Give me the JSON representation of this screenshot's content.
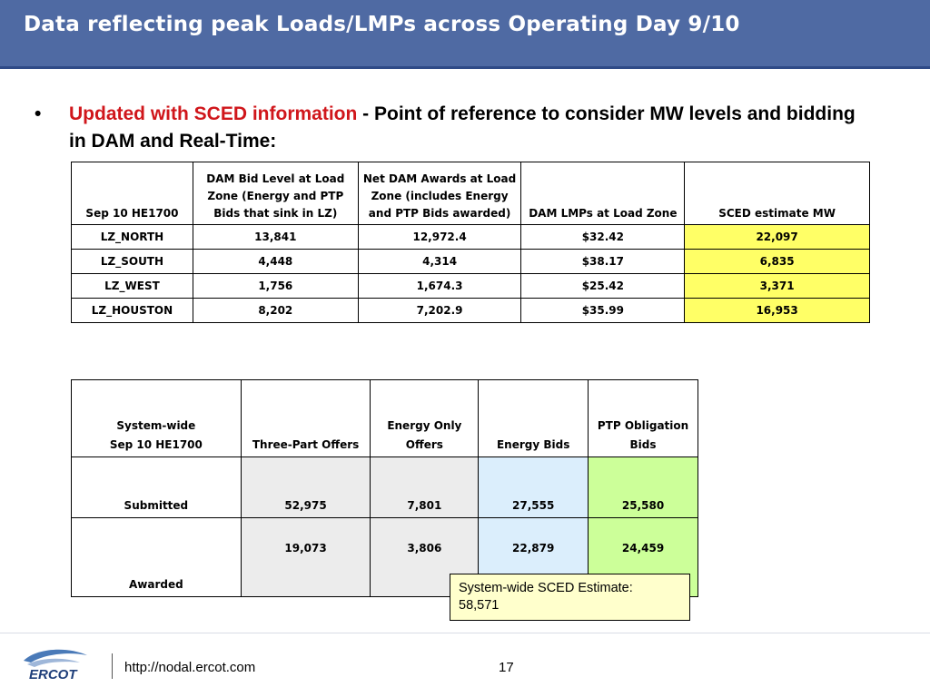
{
  "slide": {
    "title": "Data reflecting peak Loads/LMPs across Operating Day 9/10",
    "bullet_symbol": "•",
    "bullet_red": "Updated with SCED information",
    "bullet_black": " - Point of reference to consider MW levels and bidding in DAM and Real-Time:"
  },
  "table1": {
    "headers": [
      "Sep 10 HE1700",
      "DAM Bid Level at Load Zone (Energy and PTP Bids that sink in LZ)",
      "Net DAM Awards at Load Zone (includes Energy and PTP Bids awarded)",
      "DAM LMPs at Load Zone",
      "SCED estimate MW"
    ],
    "rows": [
      [
        "LZ_NORTH",
        "13,841",
        "12,972.4",
        "$32.42",
        "22,097"
      ],
      [
        "LZ_SOUTH",
        "4,448",
        "4,314",
        "$38.17",
        "6,835"
      ],
      [
        "LZ_WEST",
        "1,756",
        "1,674.3",
        "$25.42",
        "3,371"
      ],
      [
        "LZ_HOUSTON",
        "8,202",
        "7,202.9",
        "$35.99",
        "16,953"
      ]
    ],
    "highlight_color": "#ffff66"
  },
  "table2": {
    "header_line1": "System-wide",
    "header_line2": "Sep 10 HE1700",
    "headers": [
      "Three-Part Offers",
      "Energy Only Offers",
      "Energy Bids",
      "PTP Obligation Bids"
    ],
    "rows": [
      [
        "Submitted",
        "52,975",
        "7,801",
        "27,555",
        "25,580"
      ],
      [
        "Awarded",
        "19,073",
        "3,806",
        "22,879",
        "24,459"
      ]
    ],
    "colors": {
      "offers": "#ececec",
      "energy_bids": "#dbeefc",
      "ptp_bids": "#ccff99"
    }
  },
  "estimate_box": {
    "line1": "System-wide SCED Estimate:",
    "line2": "58,571"
  },
  "footer": {
    "logo_text": "ERCOT",
    "url": "http://nodal.ercot.com",
    "page_number": "17"
  },
  "colors": {
    "title_bar": "#4f6aa3",
    "accent_red": "#d0161b"
  }
}
